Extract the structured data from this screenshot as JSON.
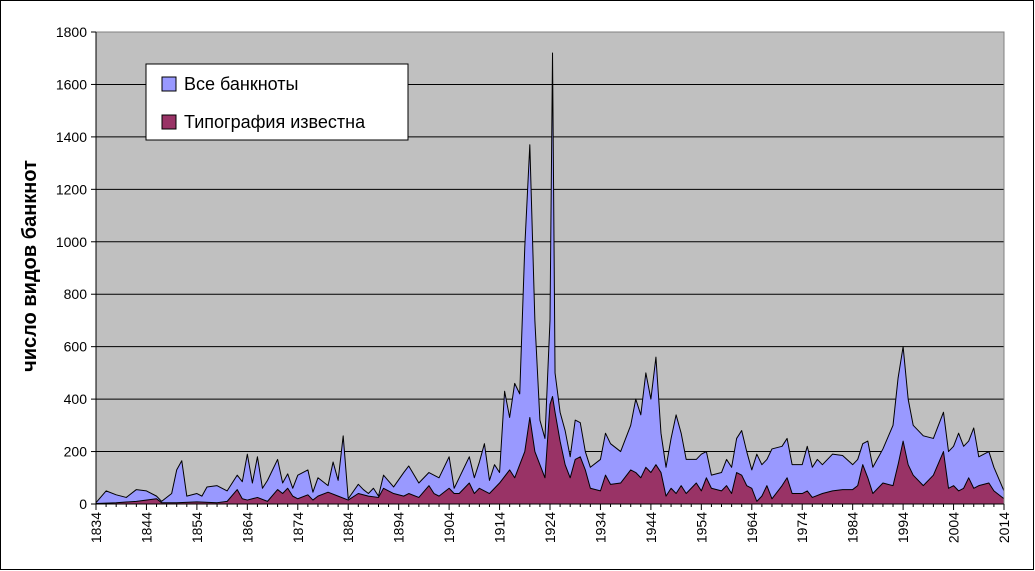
{
  "chart_data": {
    "type": "area",
    "title": "",
    "xlabel": "",
    "ylabel": "число видов банкнот",
    "xlim": [
      1834,
      2014
    ],
    "ylim": [
      0,
      1800
    ],
    "grid": true,
    "legend_position": "top-left",
    "plot_background": "#c0c0c0",
    "x_ticks": [
      "1834",
      "1844",
      "1854",
      "1864",
      "1874",
      "1884",
      "1894",
      "1904",
      "1914",
      "1924",
      "1934",
      "1944",
      "1954",
      "1964",
      "1974",
      "1984",
      "1994",
      "2004",
      "2014"
    ],
    "y_ticks": [
      "0",
      "200",
      "400",
      "600",
      "800",
      "1000",
      "1200",
      "1400",
      "1600",
      "1800"
    ],
    "series": [
      {
        "name": "Все банкноты",
        "color": "#9999ff",
        "points": [
          [
            1834,
            5
          ],
          [
            1836,
            50
          ],
          [
            1838,
            35
          ],
          [
            1840,
            25
          ],
          [
            1842,
            55
          ],
          [
            1844,
            50
          ],
          [
            1846,
            30
          ],
          [
            1847,
            10
          ],
          [
            1849,
            40
          ],
          [
            1850,
            130
          ],
          [
            1851,
            165
          ],
          [
            1852,
            30
          ],
          [
            1854,
            40
          ],
          [
            1855,
            30
          ],
          [
            1856,
            65
          ],
          [
            1858,
            70
          ],
          [
            1860,
            50
          ],
          [
            1862,
            110
          ],
          [
            1863,
            85
          ],
          [
            1864,
            190
          ],
          [
            1865,
            80
          ],
          [
            1866,
            180
          ],
          [
            1867,
            60
          ],
          [
            1868,
            90
          ],
          [
            1870,
            170
          ],
          [
            1871,
            80
          ],
          [
            1872,
            115
          ],
          [
            1873,
            60
          ],
          [
            1874,
            110
          ],
          [
            1876,
            130
          ],
          [
            1877,
            45
          ],
          [
            1878,
            100
          ],
          [
            1880,
            70
          ],
          [
            1881,
            160
          ],
          [
            1882,
            90
          ],
          [
            1883,
            260
          ],
          [
            1884,
            20
          ],
          [
            1886,
            75
          ],
          [
            1887,
            55
          ],
          [
            1888,
            40
          ],
          [
            1889,
            60
          ],
          [
            1890,
            30
          ],
          [
            1891,
            110
          ],
          [
            1893,
            65
          ],
          [
            1895,
            120
          ],
          [
            1896,
            145
          ],
          [
            1898,
            80
          ],
          [
            1900,
            120
          ],
          [
            1902,
            100
          ],
          [
            1904,
            180
          ],
          [
            1905,
            60
          ],
          [
            1906,
            100
          ],
          [
            1908,
            180
          ],
          [
            1909,
            100
          ],
          [
            1910,
            160
          ],
          [
            1911,
            230
          ],
          [
            1912,
            90
          ],
          [
            1913,
            150
          ],
          [
            1914,
            120
          ],
          [
            1915,
            430
          ],
          [
            1916,
            330
          ],
          [
            1917,
            460
          ],
          [
            1918,
            420
          ],
          [
            1919,
            980
          ],
          [
            1920,
            1370
          ],
          [
            1921,
            700
          ],
          [
            1922,
            320
          ],
          [
            1923,
            250
          ],
          [
            1924,
            700
          ],
          [
            1924.5,
            1720
          ],
          [
            1925,
            500
          ],
          [
            1926,
            350
          ],
          [
            1927,
            280
          ],
          [
            1928,
            180
          ],
          [
            1929,
            320
          ],
          [
            1930,
            310
          ],
          [
            1931,
            200
          ],
          [
            1932,
            140
          ],
          [
            1934,
            170
          ],
          [
            1935,
            270
          ],
          [
            1936,
            230
          ],
          [
            1938,
            200
          ],
          [
            1940,
            300
          ],
          [
            1941,
            400
          ],
          [
            1942,
            340
          ],
          [
            1943,
            500
          ],
          [
            1944,
            400
          ],
          [
            1945,
            560
          ],
          [
            1946,
            270
          ],
          [
            1947,
            140
          ],
          [
            1948,
            250
          ],
          [
            1949,
            340
          ],
          [
            1950,
            270
          ],
          [
            1951,
            170
          ],
          [
            1953,
            170
          ],
          [
            1954,
            190
          ],
          [
            1955,
            200
          ],
          [
            1956,
            110
          ],
          [
            1958,
            120
          ],
          [
            1959,
            170
          ],
          [
            1960,
            140
          ],
          [
            1961,
            250
          ],
          [
            1962,
            280
          ],
          [
            1963,
            200
          ],
          [
            1964,
            130
          ],
          [
            1965,
            190
          ],
          [
            1966,
            150
          ],
          [
            1967,
            170
          ],
          [
            1968,
            210
          ],
          [
            1970,
            220
          ],
          [
            1971,
            250
          ],
          [
            1972,
            150
          ],
          [
            1974,
            150
          ],
          [
            1975,
            220
          ],
          [
            1976,
            140
          ],
          [
            1977,
            170
          ],
          [
            1978,
            150
          ],
          [
            1980,
            190
          ],
          [
            1982,
            185
          ],
          [
            1984,
            150
          ],
          [
            1985,
            170
          ],
          [
            1986,
            230
          ],
          [
            1987,
            240
          ],
          [
            1988,
            140
          ],
          [
            1990,
            210
          ],
          [
            1992,
            300
          ],
          [
            1993,
            480
          ],
          [
            1994,
            600
          ],
          [
            1995,
            400
          ],
          [
            1996,
            300
          ],
          [
            1998,
            260
          ],
          [
            2000,
            250
          ],
          [
            2002,
            350
          ],
          [
            2003,
            200
          ],
          [
            2004,
            220
          ],
          [
            2005,
            270
          ],
          [
            2006,
            220
          ],
          [
            2007,
            240
          ],
          [
            2008,
            290
          ],
          [
            2009,
            180
          ],
          [
            2011,
            200
          ],
          [
            2012,
            140
          ],
          [
            2014,
            50
          ]
        ]
      },
      {
        "name": "Типография известна",
        "color": "#993366",
        "points": [
          [
            1834,
            2
          ],
          [
            1838,
            5
          ],
          [
            1842,
            10
          ],
          [
            1846,
            20
          ],
          [
            1847,
            5
          ],
          [
            1850,
            5
          ],
          [
            1854,
            8
          ],
          [
            1858,
            5
          ],
          [
            1860,
            10
          ],
          [
            1862,
            55
          ],
          [
            1863,
            20
          ],
          [
            1864,
            15
          ],
          [
            1866,
            25
          ],
          [
            1868,
            10
          ],
          [
            1870,
            55
          ],
          [
            1871,
            40
          ],
          [
            1872,
            60
          ],
          [
            1873,
            30
          ],
          [
            1874,
            20
          ],
          [
            1876,
            35
          ],
          [
            1877,
            15
          ],
          [
            1878,
            30
          ],
          [
            1880,
            45
          ],
          [
            1882,
            30
          ],
          [
            1884,
            15
          ],
          [
            1886,
            40
          ],
          [
            1888,
            30
          ],
          [
            1890,
            25
          ],
          [
            1891,
            60
          ],
          [
            1893,
            40
          ],
          [
            1895,
            30
          ],
          [
            1896,
            40
          ],
          [
            1898,
            25
          ],
          [
            1900,
            70
          ],
          [
            1901,
            40
          ],
          [
            1902,
            30
          ],
          [
            1904,
            60
          ],
          [
            1905,
            40
          ],
          [
            1906,
            40
          ],
          [
            1908,
            80
          ],
          [
            1909,
            40
          ],
          [
            1910,
            60
          ],
          [
            1912,
            40
          ],
          [
            1914,
            80
          ],
          [
            1916,
            130
          ],
          [
            1917,
            100
          ],
          [
            1918,
            150
          ],
          [
            1919,
            200
          ],
          [
            1920,
            330
          ],
          [
            1921,
            200
          ],
          [
            1922,
            150
          ],
          [
            1923,
            100
          ],
          [
            1924,
            380
          ],
          [
            1924.5,
            410
          ],
          [
            1925,
            350
          ],
          [
            1926,
            240
          ],
          [
            1927,
            150
          ],
          [
            1928,
            100
          ],
          [
            1929,
            170
          ],
          [
            1930,
            180
          ],
          [
            1931,
            130
          ],
          [
            1932,
            60
          ],
          [
            1934,
            50
          ],
          [
            1935,
            110
          ],
          [
            1936,
            75
          ],
          [
            1938,
            80
          ],
          [
            1940,
            130
          ],
          [
            1941,
            120
          ],
          [
            1942,
            100
          ],
          [
            1943,
            140
          ],
          [
            1944,
            120
          ],
          [
            1945,
            150
          ],
          [
            1946,
            120
          ],
          [
            1947,
            30
          ],
          [
            1948,
            60
          ],
          [
            1949,
            40
          ],
          [
            1950,
            70
          ],
          [
            1951,
            40
          ],
          [
            1953,
            80
          ],
          [
            1954,
            50
          ],
          [
            1955,
            100
          ],
          [
            1956,
            60
          ],
          [
            1958,
            50
          ],
          [
            1959,
            70
          ],
          [
            1960,
            40
          ],
          [
            1961,
            120
          ],
          [
            1962,
            110
          ],
          [
            1963,
            70
          ],
          [
            1964,
            60
          ],
          [
            1965,
            10
          ],
          [
            1966,
            30
          ],
          [
            1967,
            70
          ],
          [
            1968,
            20
          ],
          [
            1970,
            70
          ],
          [
            1971,
            100
          ],
          [
            1972,
            40
          ],
          [
            1974,
            40
          ],
          [
            1975,
            50
          ],
          [
            1976,
            25
          ],
          [
            1978,
            40
          ],
          [
            1980,
            50
          ],
          [
            1982,
            55
          ],
          [
            1984,
            55
          ],
          [
            1985,
            70
          ],
          [
            1986,
            150
          ],
          [
            1987,
            100
          ],
          [
            1988,
            40
          ],
          [
            1990,
            80
          ],
          [
            1992,
            70
          ],
          [
            1993,
            150
          ],
          [
            1994,
            240
          ],
          [
            1995,
            150
          ],
          [
            1996,
            110
          ],
          [
            1998,
            70
          ],
          [
            2000,
            110
          ],
          [
            2002,
            200
          ],
          [
            2003,
            60
          ],
          [
            2004,
            70
          ],
          [
            2005,
            50
          ],
          [
            2006,
            60
          ],
          [
            2007,
            100
          ],
          [
            2008,
            60
          ],
          [
            2009,
            70
          ],
          [
            2011,
            80
          ],
          [
            2012,
            50
          ],
          [
            2014,
            20
          ]
        ]
      }
    ]
  }
}
